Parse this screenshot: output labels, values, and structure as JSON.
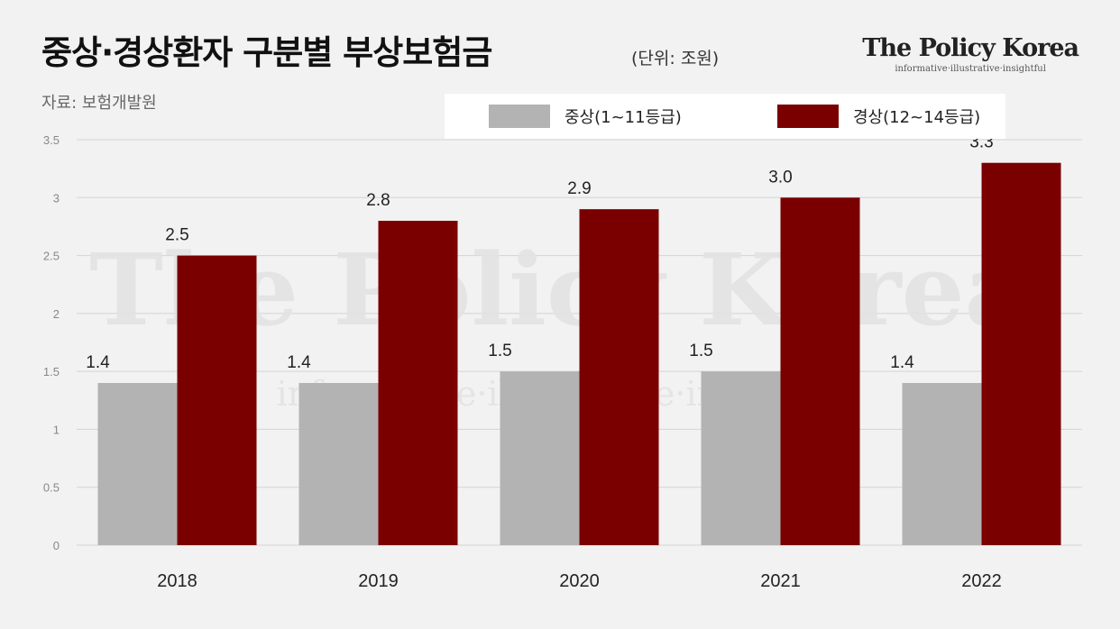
{
  "header": {
    "title": "중상·경상환자 구분별 부상보험금",
    "unit": "(단위: 조원)",
    "source": "자료: 보험개발원"
  },
  "brand": {
    "name": "The Policy Korea",
    "tagline": "informative·illustrative·insightful"
  },
  "watermark": {
    "main": "The Policy Korea",
    "sub": "informative·illustrative·insightful"
  },
  "colors": {
    "series_minor": "#b3b3b3",
    "series_major": "#7a0000",
    "background": "#f2f2f2",
    "grid": "#d4d4d4"
  },
  "chart_data": {
    "type": "bar",
    "categories": [
      "2018",
      "2019",
      "2020",
      "2021",
      "2022"
    ],
    "series": [
      {
        "name": "중상(1~11등급)",
        "values": [
          1.4,
          1.4,
          1.5,
          1.5,
          1.4
        ],
        "labels": [
          "1.4",
          "1.4",
          "1.5",
          "1.5",
          "1.4"
        ]
      },
      {
        "name": "경상(12~14등급)",
        "values": [
          2.5,
          2.8,
          2.9,
          3.0,
          3.3
        ],
        "labels": [
          "2.5",
          "2.8",
          "2.9",
          "3.0",
          "3.3"
        ]
      }
    ],
    "ylim": [
      0,
      3.5
    ],
    "yticks": [
      "0",
      "0.5",
      "1",
      "1.5",
      "2",
      "2.5",
      "3",
      "3.5"
    ],
    "grid": true,
    "legend_position": "top"
  }
}
